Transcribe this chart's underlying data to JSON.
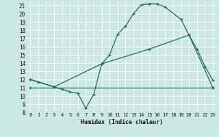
{
  "xlabel": "Humidex (Indice chaleur)",
  "bg_color": "#cce8e4",
  "line_color": "#1a6b5a",
  "grid_color": "#ffffff",
  "xlim": [
    -0.5,
    23.5
  ],
  "ylim": [
    8,
    21.5
  ],
  "xticks": [
    0,
    1,
    2,
    3,
    4,
    5,
    6,
    7,
    8,
    9,
    10,
    11,
    12,
    13,
    14,
    15,
    16,
    17,
    18,
    19,
    20,
    21,
    22,
    23
  ],
  "yticks": [
    8,
    9,
    10,
    11,
    12,
    13,
    14,
    15,
    16,
    17,
    18,
    19,
    20,
    21
  ],
  "line1_x": [
    0,
    1,
    3,
    4,
    5,
    6,
    7,
    8,
    9,
    10,
    11,
    12,
    13,
    14,
    15,
    16,
    17,
    19,
    20,
    21,
    22,
    23
  ],
  "line1_y": [
    12,
    11.7,
    11.1,
    10.8,
    10.5,
    10.3,
    8.5,
    10.2,
    13.9,
    15.0,
    17.5,
    18.5,
    20.0,
    21.1,
    21.2,
    21.2,
    20.8,
    19.3,
    17.4,
    15.7,
    13.6,
    11.9
  ],
  "line2_x": [
    0,
    3,
    9,
    15,
    20,
    23
  ],
  "line2_y": [
    12,
    11.1,
    13.9,
    15.7,
    17.4,
    11.0
  ],
  "line3_x": [
    0,
    23
  ],
  "line3_y": [
    11.0,
    11.0
  ]
}
